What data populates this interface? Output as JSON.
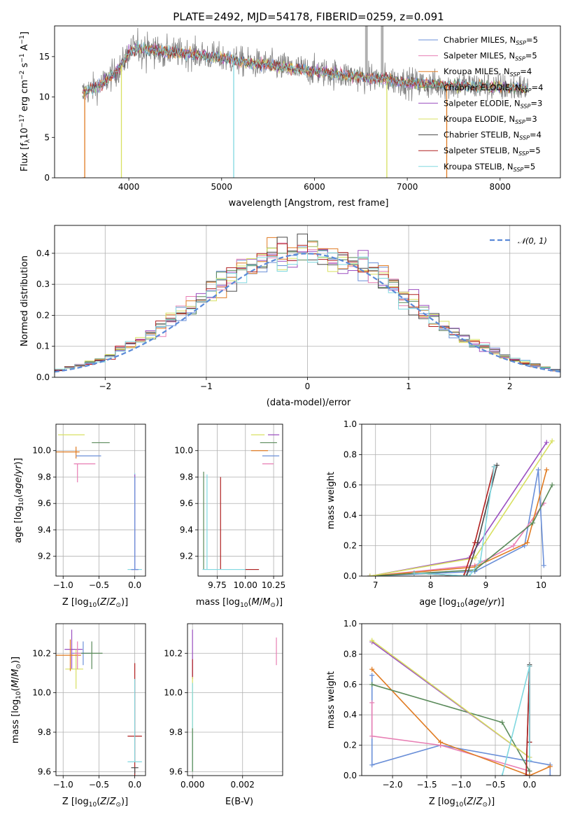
{
  "title": "PLATE=2492, MJD=54178, FIBERID=0259, z=0.091",
  "colors": {
    "cmiles": "#6a8fd8",
    "smiles": "#e87fb4",
    "kmiles": "#e07b22",
    "celodie": "#5a8a5a",
    "selodie": "#9b4fc0",
    "kelodie": "#d8e060",
    "cstelib": "#4a4a4a",
    "sstelib": "#b02020",
    "kstelib": "#80d8e0",
    "data": "#808080",
    "normal": "#5b8ad8"
  },
  "panels": {
    "spectrum": {
      "xlabel": "wavelength [Angstrom, rest frame]",
      "ylabel": "Flux [f",
      "xticks": [
        "4000",
        "5000",
        "6000",
        "7000",
        "8000"
      ],
      "yticks": [
        "0",
        "5",
        "10",
        "15"
      ]
    },
    "residual": {
      "xlabel": "(data-model)/error",
      "ylabel": "Normed distribution",
      "xticks": [
        "−2",
        "−1",
        "0",
        "1",
        "2"
      ],
      "yticks": [
        "0.0",
        "0.1",
        "0.2",
        "0.3",
        "0.4"
      ],
      "legend": "N(0, 1)"
    },
    "age_z": {
      "xlabel": "Z [log",
      "ylabel": "age  [log",
      "xticks": [
        "−1.0",
        "−0.5",
        "0.0"
      ],
      "yticks": [
        "9.2",
        "9.4",
        "9.6",
        "9.8",
        "10.0"
      ]
    },
    "age_mass": {
      "xlabel": "mass [log",
      "xticks": [
        "9.75",
        "10.00",
        "10.25"
      ],
      "yticks": [
        "9.2",
        "9.4",
        "9.6",
        "9.8",
        "10.0"
      ]
    },
    "w_age": {
      "xlabel": "age  [log",
      "ylabel": "mass weight",
      "xticks": [
        "7",
        "8",
        "9",
        "10"
      ],
      "yticks": [
        "0.0",
        "0.2",
        "0.4",
        "0.6",
        "0.8",
        "1.0"
      ]
    },
    "mass_z": {
      "xlabel": "Z [log",
      "ylabel": "mass [log",
      "xticks": [
        "−1.0",
        "−0.5",
        "0.0"
      ],
      "yticks": [
        "9.6",
        "9.8",
        "10.0",
        "10.2"
      ]
    },
    "mass_ebv": {
      "xlabel": "E(B-V)",
      "xticks": [
        "0.000",
        "0.002"
      ],
      "yticks": [
        "9.6",
        "9.8",
        "10.0",
        "10.2"
      ]
    },
    "w_z": {
      "xlabel": "Z [log",
      "ylabel": "mass weight",
      "xticks": [
        "−2.0",
        "−1.5",
        "−1.0",
        "−0.5",
        "0.0"
      ],
      "yticks": [
        "0.0",
        "0.2",
        "0.4",
        "0.6",
        "0.8",
        "1.0"
      ]
    }
  },
  "chart_data": [
    {
      "type": "line",
      "title": "PLATE=2492, MJD=54178, FIBERID=0259, z=0.091",
      "xlabel": "wavelength [Angstrom, rest frame]",
      "ylabel": "Flux [fλ 10^-17 erg cm^-2 s^-1 A^-1]",
      "xlim": [
        3200,
        8650
      ],
      "ylim": [
        0,
        18.8
      ],
      "legend_position": "upper right",
      "series": [
        {
          "name": "Chabrier MILES, N_SSP=5",
          "color": "#6a8fd8"
        },
        {
          "name": "Salpeter MILES, N_SSP=5",
          "color": "#e87fb4"
        },
        {
          "name": "Kroupa MILES, N_SSP=4",
          "color": "#e07b22"
        },
        {
          "name": "Chabrier ELODIE, N_SSP=4",
          "color": "#5a8a5a"
        },
        {
          "name": "Salpeter ELODIE, N_SSP=3",
          "color": "#9b4fc0"
        },
        {
          "name": "Kroupa ELODIE, N_SSP=3",
          "color": "#d8e060"
        },
        {
          "name": "Chabrier STELIB, N_SSP=4",
          "color": "#4a4a4a"
        },
        {
          "name": "Salpeter STELIB, N_SSP=5",
          "color": "#b02020"
        },
        {
          "name": "Kroupa STELIB, N_SSP=5",
          "color": "#80d8e0"
        }
      ],
      "continuum": {
        "x": [
          3500,
          3700,
          3900,
          4000,
          4100,
          4300,
          4500,
          4800,
          5000,
          5300,
          5600,
          6000,
          6400,
          6800,
          7000,
          7300,
          7600,
          7800,
          8000,
          8300
        ],
        "y": [
          10.5,
          11.5,
          13.5,
          15.5,
          16.0,
          15.8,
          15.5,
          15.2,
          14.8,
          14.2,
          13.8,
          13.2,
          12.6,
          12.2,
          11.8,
          11.5,
          11.4,
          11.3,
          11.2,
          11.1
        ]
      },
      "absorption_drops": [
        {
          "x": 3525,
          "y": 0
        },
        {
          "x": 3920,
          "y": 0
        },
        {
          "x": 5130,
          "y": 0
        },
        {
          "x": 6780,
          "y": 0
        },
        {
          "x": 7425,
          "y": 0
        }
      ]
    },
    {
      "type": "bar",
      "xlabel": "(data-model)/error",
      "ylabel": "Normed distribution",
      "xlim": [
        -2.5,
        2.5
      ],
      "ylim": [
        0,
        0.49
      ],
      "bin_width": 0.1,
      "reference_curve": "N(0,1)",
      "envelope": {
        "x": [
          -2.5,
          -2.0,
          -1.5,
          -1.0,
          -0.75,
          -0.5,
          -0.25,
          0,
          0.25,
          0.5,
          0.75,
          1.0,
          1.5,
          2.0,
          2.5
        ],
        "y": [
          0.02,
          0.06,
          0.15,
          0.26,
          0.33,
          0.37,
          0.4,
          0.4,
          0.39,
          0.36,
          0.32,
          0.25,
          0.13,
          0.06,
          0.02
        ]
      }
    },
    {
      "type": "scatter",
      "xlabel": "Z [log10(Z/Z_sun)]",
      "ylabel": "age [log10(age/yr)]",
      "xlim": [
        -1.1,
        0.15
      ],
      "ylim": [
        9.05,
        10.2
      ]
    },
    {
      "type": "scatter",
      "xlabel": "mass [log10(M/M_sun)]",
      "xlim": [
        9.58,
        10.33
      ],
      "ylim": [
        9.05,
        10.2
      ]
    },
    {
      "type": "line",
      "xlabel": "age [log10(age/yr)]",
      "ylabel": "mass weight",
      "xlim": [
        6.75,
        10.35
      ],
      "ylim": [
        0,
        1.0
      ],
      "series": [
        {
          "color": "#6a8fd8",
          "x": [
            6.9,
            8.8,
            9.7,
            9.95,
            10.05
          ],
          "y": [
            0.0,
            0.03,
            0.2,
            0.7,
            0.07
          ]
        },
        {
          "color": "#e87fb4",
          "x": [
            6.9,
            8.8,
            9.5,
            10.05
          ],
          "y": [
            0.0,
            0.07,
            0.2,
            0.48
          ]
        },
        {
          "color": "#e07b22",
          "x": [
            6.9,
            8.8,
            9.75,
            10.1
          ],
          "y": [
            0.0,
            0.06,
            0.22,
            0.7
          ]
        },
        {
          "color": "#5a8a5a",
          "x": [
            6.9,
            8.8,
            9.85,
            10.2
          ],
          "y": [
            0.0,
            0.04,
            0.35,
            0.6
          ]
        },
        {
          "color": "#9b4fc0",
          "x": [
            6.9,
            8.7,
            10.1
          ],
          "y": [
            0.0,
            0.12,
            0.88
          ]
        },
        {
          "color": "#d8e060",
          "x": [
            6.9,
            8.8,
            10.2
          ],
          "y": [
            0.0,
            0.12,
            0.89
          ]
        },
        {
          "color": "#4a4a4a",
          "x": [
            7.7,
            8.65,
            8.85,
            9.2
          ],
          "y": [
            0.02,
            0.0,
            0.22,
            0.73
          ]
        },
        {
          "color": "#b02020",
          "x": [
            7.7,
            8.6,
            8.8,
            9.15
          ],
          "y": [
            0.02,
            0.0,
            0.22,
            0.72
          ]
        },
        {
          "color": "#80d8e0",
          "x": [
            7.7,
            8.7,
            8.9,
            9.15
          ],
          "y": [
            0.02,
            0.0,
            0.1,
            0.72
          ]
        }
      ]
    },
    {
      "type": "scatter",
      "xlabel": "Z [log10(Z/Z_sun)]",
      "ylabel": "mass [log10(M/M_sun)]",
      "xlim": [
        -1.1,
        0.15
      ],
      "ylim": [
        9.58,
        10.35
      ]
    },
    {
      "type": "scatter",
      "xlabel": "E(B-V)",
      "xlim": [
        -0.0002,
        0.0036
      ],
      "ylim": [
        9.58,
        10.35
      ]
    },
    {
      "type": "line",
      "xlabel": "Z [log10(Z/Z_sun)]",
      "ylabel": "mass weight",
      "xlim": [
        -2.45,
        0.45
      ],
      "ylim": [
        0,
        1.0
      ],
      "series": [
        {
          "color": "#6a8fd8",
          "x": [
            -2.3,
            -2.3,
            -1.3,
            0.3,
            0.3
          ],
          "y": [
            0.66,
            0.07,
            0.2,
            0.07,
            0.0
          ]
        },
        {
          "color": "#e87fb4",
          "x": [
            -2.3,
            -2.3,
            -1.3,
            0.0,
            0.0
          ],
          "y": [
            0.48,
            0.26,
            0.2,
            0.03,
            0.0
          ]
        },
        {
          "color": "#e07b22",
          "x": [
            -2.3,
            -1.3,
            0.0,
            0.3
          ],
          "y": [
            0.7,
            0.22,
            0.0,
            0.06
          ]
        },
        {
          "color": "#5a8a5a",
          "x": [
            -2.3,
            -0.4,
            0.0
          ],
          "y": [
            0.6,
            0.35,
            0.03
          ]
        },
        {
          "color": "#9b4fc0",
          "x": [
            -2.3,
            0.0
          ],
          "y": [
            0.88,
            0.12
          ]
        },
        {
          "color": "#d8e060",
          "x": [
            -2.3,
            0.0
          ],
          "y": [
            0.89,
            0.12
          ]
        },
        {
          "color": "#4a4a4a",
          "x": [
            -0.05,
            0.0,
            0.0
          ],
          "y": [
            0.0,
            0.73,
            0.22
          ]
        },
        {
          "color": "#b02020",
          "x": [
            -0.05,
            0.0,
            0.0
          ],
          "y": [
            0.0,
            0.72,
            0.22
          ]
        },
        {
          "color": "#80d8e0",
          "x": [
            -0.4,
            0.0,
            0.0
          ],
          "y": [
            0.0,
            0.72,
            0.1
          ]
        }
      ]
    }
  ]
}
